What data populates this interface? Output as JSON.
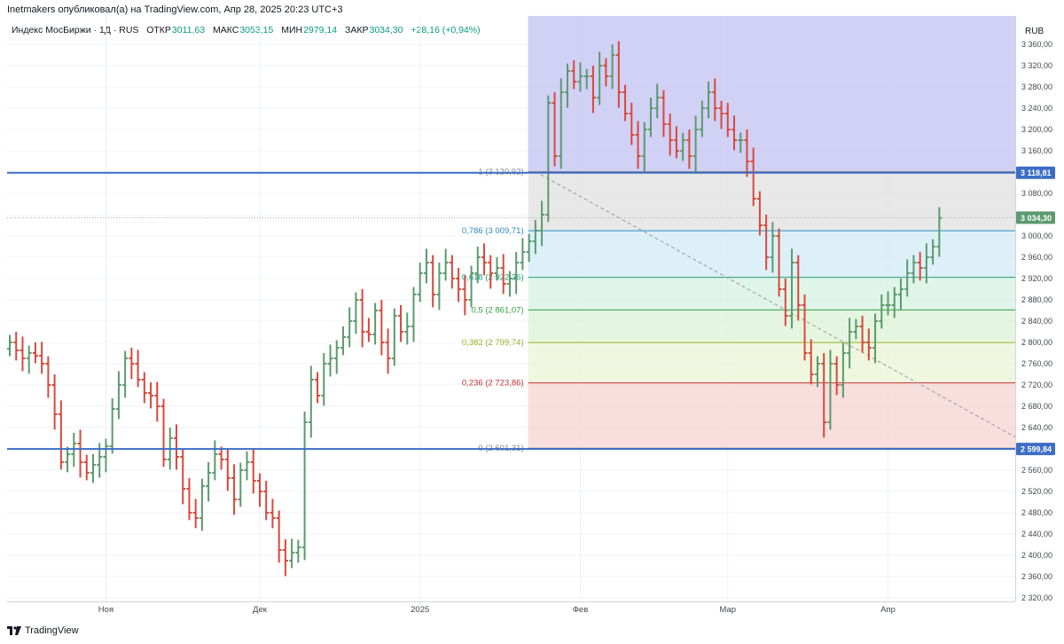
{
  "header": {
    "author_line": "Inetmakers опубликовал(а) на TradingView.com, Апр 28, 2025 20:23 UTC+3"
  },
  "legend": {
    "symbol": "Индекс МосБиржи · 1Д · RUS",
    "open_label": "ОТКР",
    "open": "3011,63",
    "high_label": "МАКС",
    "high": "3053,15",
    "low_label": "МИН",
    "low": "2979,14",
    "close_label": "ЗАКР",
    "close": "3034,30",
    "change": "+28,16 (+0,94%)"
  },
  "footer": {
    "brand": "TradingView"
  },
  "colors": {
    "up": "#5b9a6e",
    "down": "#d9483b",
    "line": "#3c6dc6",
    "zone_top": "#c9c8f3",
    "zone_1": "#e0e0e0",
    "zone_0786": "#d1ebf6",
    "zone_0618": "#d6f1e3",
    "zone_05": "#dcf3d6",
    "zone_0382": "#ebf4d4",
    "zone_0236": "#f6d4d2"
  },
  "chart_data": {
    "type": "ohlc",
    "currency": "RUB",
    "ylim": [
      2290,
      3390
    ],
    "y_ticks": [
      "3 360,00",
      "3 320,00",
      "3 280,00",
      "3 240,00",
      "3 200,00",
      "3 160,00",
      "3 080,00",
      "3 040,00",
      "3 000,00",
      "2 960,00",
      "2 920,00",
      "2 880,00",
      "2 840,00",
      "2 800,00",
      "2 760,00",
      "2 720,00",
      "2 680,00",
      "2 640,00",
      "2 600,00",
      "2 560,00",
      "2 520,00",
      "2 480,00",
      "2 440,00",
      "2 400,00",
      "2 360,00",
      "2 320,00"
    ],
    "x_ticks": [
      {
        "label": "Ноя",
        "index": 15
      },
      {
        "label": "Дек",
        "index": 39
      },
      {
        "label": "2025",
        "index": 64
      },
      {
        "label": "Фев",
        "index": 89
      },
      {
        "label": "Мар",
        "index": 112
      },
      {
        "label": "Апр",
        "index": 137
      }
    ],
    "horizontal_lines": [
      {
        "value": 3118.81,
        "label": "3 118,81"
      },
      {
        "value": 2599.84,
        "label": "2 599,84"
      }
    ],
    "last_price": {
      "value": 3034.3,
      "label": "3 034,30"
    },
    "fibonacci": {
      "start_index": 81,
      "levels": [
        {
          "ratio": "1",
          "value": 3120.92,
          "label": "1 (3 120,92)",
          "color": "#888888"
        },
        {
          "ratio": "0.786",
          "value": 3009.71,
          "label": "0,786 (3 009,71)",
          "color": "#2e8bc0"
        },
        {
          "ratio": "0.618",
          "value": 2922.36,
          "label": "0,618 (2 922,36)",
          "color": "#22a07a"
        },
        {
          "ratio": "0.5",
          "value": 2861.07,
          "label": "0,5 (2 861,07)",
          "color": "#2f9e44"
        },
        {
          "ratio": "0.382",
          "value": 2799.74,
          "label": "0,382 (2 799,74)",
          "color": "#9ab02a"
        },
        {
          "ratio": "0.236",
          "value": 2723.86,
          "label": "0,236 (2 723,86)",
          "color": "#c53030"
        },
        {
          "ratio": "0",
          "value": 2601.31,
          "label": "0 (2 601,31)",
          "color": "#888888"
        }
      ],
      "trend_line": [
        {
          "index": 82,
          "value": 3120.92
        },
        {
          "index": 160,
          "value": 2601.31
        }
      ]
    },
    "closes": [
      2800,
      2785,
      2770,
      2780,
      2775,
      2760,
      2720,
      2665,
      2575,
      2590,
      2610,
      2575,
      2555,
      2570,
      2585,
      2605,
      2675,
      2720,
      2770,
      2760,
      2730,
      2705,
      2700,
      2680,
      2580,
      2620,
      2585,
      2525,
      2480,
      2470,
      2530,
      2555,
      2590,
      2580,
      2545,
      2505,
      2560,
      2575,
      2540,
      2520,
      2480,
      2470,
      2410,
      2390,
      2405,
      2415,
      2650,
      2730,
      2700,
      2760,
      2770,
      2790,
      2810,
      2840,
      2880,
      2820,
      2815,
      2860,
      2800,
      2770,
      2850,
      2820,
      2830,
      2890,
      2930,
      2950,
      2890,
      2930,
      2950,
      2920,
      2900,
      2880,
      2930,
      2960,
      2950,
      2930,
      2940,
      2910,
      2920,
      2950,
      2970,
      2990,
      3010,
      3040,
      3250,
      3150,
      3270,
      3310,
      3290,
      3300,
      3300,
      3260,
      3320,
      3300,
      3340,
      3270,
      3230,
      3190,
      3150,
      3200,
      3240,
      3260,
      3210,
      3180,
      3160,
      3180,
      3150,
      3200,
      3240,
      3270,
      3240,
      3230,
      3200,
      3180,
      3180,
      3140,
      3070,
      3020,
      2960,
      3000,
      2900,
      2850,
      2950,
      2870,
      2780,
      2740,
      2760,
      2650,
      2760,
      2720,
      2780,
      2820,
      2830,
      2800,
      2790,
      2840,
      2870,
      2870,
      2890,
      2900,
      2930,
      2950,
      2940,
      2960,
      2980,
      3034
    ]
  }
}
